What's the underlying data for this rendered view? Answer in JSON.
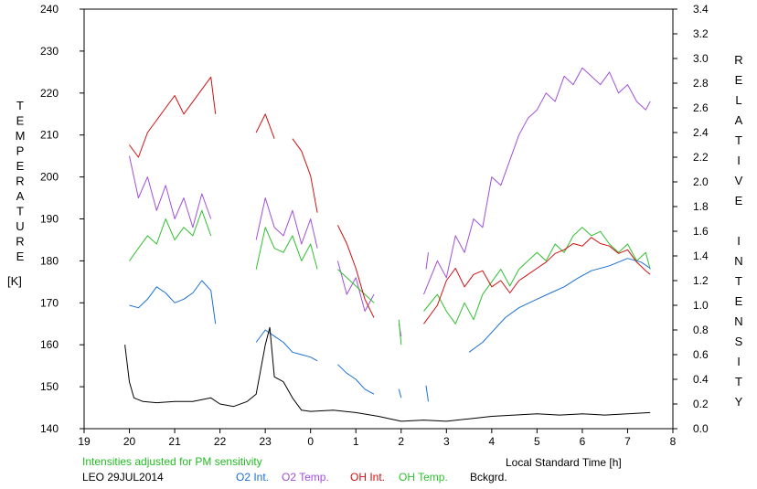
{
  "chart_data": {
    "type": "line",
    "left_axis_label": "TEMPERATURE",
    "left_axis_unit": "[K]",
    "right_axis_label": "RELATIVE INTENSITY",
    "xlabel": "Local Standard Time [h]",
    "note": "Intensities adjusted for PM sensitivity",
    "footer_id": "LEO 29JUL2014",
    "x_ticks": [
      "19",
      "20",
      "21",
      "22",
      "23",
      "0",
      "1",
      "2",
      "3",
      "4",
      "5",
      "6",
      "7",
      "8"
    ],
    "x_range": [
      19,
      32
    ],
    "y_left_ticks": [
      140,
      150,
      160,
      170,
      180,
      190,
      200,
      210,
      220,
      230,
      240
    ],
    "y_left_range": [
      140,
      240
    ],
    "y_right_ticks": [
      "0.0",
      "0.2",
      "0.4",
      "0.6",
      "0.8",
      "1.0",
      "1.2",
      "1.4",
      "1.6",
      "1.8",
      "2.0",
      "2.2",
      "2.4",
      "2.6",
      "2.8",
      "3.0",
      "3.2",
      "3.4"
    ],
    "y_right_range": [
      0,
      3.4
    ],
    "colors": {
      "o2_int": "#1a6fd6",
      "o2_temp": "#a050d8",
      "oh_int": "#d01010",
      "oh_temp": "#30c030",
      "bckgrd": "#000000",
      "note": "#22bb22"
    },
    "series": [
      {
        "name": "O2 Int.",
        "axis": "right",
        "color": "#1a6fd6",
        "segments": [
          [
            [
              20.0,
              1.0
            ],
            [
              20.2,
              0.98
            ],
            [
              20.4,
              1.05
            ],
            [
              20.6,
              1.15
            ],
            [
              20.8,
              1.1
            ],
            [
              21.0,
              1.02
            ],
            [
              21.2,
              1.05
            ],
            [
              21.4,
              1.1
            ],
            [
              21.6,
              1.2
            ],
            [
              21.8,
              1.12
            ],
            [
              21.9,
              0.85
            ]
          ],
          [
            [
              22.8,
              0.7
            ],
            [
              23.0,
              0.8
            ],
            [
              23.2,
              0.75
            ],
            [
              23.4,
              0.7
            ],
            [
              23.6,
              0.62
            ],
            [
              23.8,
              0.6
            ],
            [
              24.0,
              0.58
            ],
            [
              24.15,
              0.55
            ]
          ],
          [
            [
              24.6,
              0.52
            ],
            [
              24.8,
              0.45
            ],
            [
              25.0,
              0.4
            ],
            [
              25.2,
              0.32
            ],
            [
              25.4,
              0.28
            ]
          ],
          [
            [
              25.95,
              0.32
            ],
            [
              26.0,
              0.25
            ]
          ],
          [
            [
              26.55,
              0.35
            ],
            [
              26.6,
              0.22
            ]
          ],
          [
            [
              27.5,
              0.62
            ],
            [
              27.8,
              0.7
            ],
            [
              28.0,
              0.78
            ],
            [
              28.3,
              0.9
            ],
            [
              28.6,
              0.98
            ],
            [
              29.0,
              1.05
            ],
            [
              29.3,
              1.1
            ],
            [
              29.6,
              1.15
            ],
            [
              29.9,
              1.22
            ],
            [
              30.2,
              1.28
            ],
            [
              30.6,
              1.32
            ],
            [
              31.0,
              1.38
            ],
            [
              31.3,
              1.35
            ],
            [
              31.5,
              1.3
            ]
          ]
        ]
      },
      {
        "name": "O2 Temp.",
        "axis": "left",
        "color": "#a050d8",
        "segments": [
          [
            [
              20.0,
              205
            ],
            [
              20.2,
              195
            ],
            [
              20.4,
              200
            ],
            [
              20.6,
              192
            ],
            [
              20.8,
              198
            ],
            [
              21.0,
              190
            ],
            [
              21.2,
              195
            ],
            [
              21.4,
              188
            ],
            [
              21.6,
              196
            ],
            [
              21.8,
              190
            ]
          ],
          [
            [
              22.8,
              185
            ],
            [
              23.0,
              195
            ],
            [
              23.2,
              188
            ],
            [
              23.4,
              186
            ],
            [
              23.6,
              192
            ],
            [
              23.8,
              184
            ],
            [
              24.0,
              190
            ],
            [
              24.15,
              183
            ]
          ],
          [
            [
              24.6,
              180
            ],
            [
              24.8,
              172
            ],
            [
              25.0,
              176
            ],
            [
              25.2,
              168
            ],
            [
              25.4,
              172
            ]
          ],
          [
            [
              25.95,
              165
            ],
            [
              26.0,
              162
            ]
          ],
          [
            [
              26.55,
              178
            ],
            [
              26.6,
              182
            ]
          ],
          [
            [
              26.5,
              172
            ],
            [
              26.8,
              180
            ],
            [
              27.0,
              176
            ],
            [
              27.2,
              186
            ],
            [
              27.4,
              182
            ],
            [
              27.6,
              190
            ],
            [
              27.8,
              188
            ],
            [
              28.0,
              200
            ],
            [
              28.2,
              198
            ],
            [
              28.4,
              204
            ],
            [
              28.6,
              210
            ],
            [
              28.8,
              214
            ],
            [
              29.0,
              216
            ],
            [
              29.2,
              220
            ],
            [
              29.4,
              218
            ],
            [
              29.6,
              224
            ],
            [
              29.8,
              222
            ],
            [
              30.0,
              226
            ],
            [
              30.2,
              224
            ],
            [
              30.4,
              222
            ],
            [
              30.6,
              225
            ],
            [
              30.8,
              220
            ],
            [
              31.0,
              222
            ],
            [
              31.2,
              218
            ],
            [
              31.4,
              216
            ],
            [
              31.5,
              218
            ]
          ]
        ]
      },
      {
        "name": "OH Int.",
        "axis": "right",
        "color": "#d01010",
        "segments": [
          [
            [
              20.0,
              2.3
            ],
            [
              20.2,
              2.2
            ],
            [
              20.4,
              2.4
            ],
            [
              20.6,
              2.5
            ],
            [
              20.8,
              2.6
            ],
            [
              21.0,
              2.7
            ],
            [
              21.2,
              2.55
            ],
            [
              21.4,
              2.65
            ],
            [
              21.6,
              2.75
            ],
            [
              21.8,
              2.85
            ],
            [
              21.9,
              2.55
            ]
          ],
          [
            [
              22.8,
              2.4
            ],
            [
              23.0,
              2.55
            ],
            [
              23.2,
              2.35
            ]
          ],
          [
            [
              23.6,
              2.35
            ],
            [
              23.8,
              2.25
            ],
            [
              24.0,
              2.05
            ],
            [
              24.15,
              1.75
            ]
          ],
          [
            [
              24.6,
              1.65
            ],
            [
              24.8,
              1.5
            ],
            [
              25.0,
              1.3
            ],
            [
              25.2,
              1.05
            ],
            [
              25.4,
              0.9
            ]
          ],
          [
            [
              26.5,
              0.85
            ],
            [
              26.8,
              1.0
            ],
            [
              27.0,
              1.2
            ],
            [
              27.2,
              1.3
            ],
            [
              27.4,
              1.15
            ],
            [
              27.6,
              1.25
            ],
            [
              27.8,
              1.28
            ],
            [
              28.0,
              1.15
            ],
            [
              28.2,
              1.2
            ],
            [
              28.4,
              1.1
            ],
            [
              28.6,
              1.2
            ],
            [
              28.8,
              1.25
            ],
            [
              29.0,
              1.3
            ],
            [
              29.2,
              1.35
            ],
            [
              29.4,
              1.42
            ],
            [
              29.6,
              1.45
            ],
            [
              29.8,
              1.5
            ],
            [
              30.0,
              1.48
            ],
            [
              30.2,
              1.55
            ],
            [
              30.4,
              1.5
            ],
            [
              30.6,
              1.48
            ],
            [
              30.8,
              1.42
            ],
            [
              31.0,
              1.45
            ],
            [
              31.2,
              1.35
            ],
            [
              31.4,
              1.28
            ],
            [
              31.5,
              1.25
            ]
          ]
        ]
      },
      {
        "name": "OH Temp.",
        "axis": "left",
        "color": "#30c030",
        "segments": [
          [
            [
              20.0,
              180
            ],
            [
              20.2,
              183
            ],
            [
              20.4,
              186
            ],
            [
              20.6,
              184
            ],
            [
              20.8,
              190
            ],
            [
              21.0,
              185
            ],
            [
              21.2,
              188
            ],
            [
              21.4,
              186
            ],
            [
              21.6,
              192
            ],
            [
              21.8,
              186
            ]
          ],
          [
            [
              22.8,
              178
            ],
            [
              23.0,
              188
            ],
            [
              23.2,
              183
            ],
            [
              23.4,
              182
            ],
            [
              23.6,
              186
            ],
            [
              23.8,
              180
            ],
            [
              24.0,
              184
            ],
            [
              24.15,
              178
            ]
          ],
          [
            [
              24.6,
              178
            ],
            [
              24.8,
              176
            ],
            [
              25.0,
              174
            ],
            [
              25.2,
              172
            ],
            [
              25.4,
              170
            ]
          ],
          [
            [
              25.95,
              166
            ],
            [
              26.0,
              160
            ]
          ],
          [
            [
              26.5,
              168
            ],
            [
              26.8,
              172
            ],
            [
              27.0,
              168
            ],
            [
              27.2,
              165
            ],
            [
              27.4,
              170
            ],
            [
              27.6,
              166
            ],
            [
              27.8,
              172
            ],
            [
              28.0,
              175
            ],
            [
              28.2,
              178
            ],
            [
              28.4,
              174
            ],
            [
              28.6,
              178
            ],
            [
              28.8,
              180
            ],
            [
              29.0,
              182
            ],
            [
              29.2,
              180
            ],
            [
              29.4,
              184
            ],
            [
              29.6,
              182
            ],
            [
              29.8,
              186
            ],
            [
              30.0,
              188
            ],
            [
              30.2,
              186
            ],
            [
              30.4,
              187
            ],
            [
              30.6,
              184
            ],
            [
              30.8,
              182
            ],
            [
              31.0,
              184
            ],
            [
              31.2,
              180
            ],
            [
              31.4,
              182
            ],
            [
              31.5,
              178
            ]
          ]
        ]
      },
      {
        "name": "Bckgrd.",
        "axis": "right",
        "color": "#000000",
        "segments": [
          [
            [
              19.9,
              0.68
            ],
            [
              20.0,
              0.38
            ],
            [
              20.1,
              0.25
            ],
            [
              20.3,
              0.22
            ],
            [
              20.6,
              0.21
            ],
            [
              21.0,
              0.22
            ],
            [
              21.4,
              0.22
            ],
            [
              21.8,
              0.25
            ],
            [
              22.0,
              0.2
            ],
            [
              22.3,
              0.18
            ],
            [
              22.6,
              0.22
            ],
            [
              22.8,
              0.28
            ],
            [
              23.0,
              0.68
            ],
            [
              23.1,
              0.82
            ],
            [
              23.2,
              0.42
            ],
            [
              23.4,
              0.38
            ],
            [
              23.6,
              0.25
            ],
            [
              23.8,
              0.15
            ],
            [
              24.0,
              0.14
            ],
            [
              24.5,
              0.15
            ],
            [
              25.0,
              0.13
            ],
            [
              25.5,
              0.1
            ],
            [
              26.0,
              0.06
            ],
            [
              26.5,
              0.07
            ],
            [
              27.0,
              0.06
            ],
            [
              27.5,
              0.08
            ],
            [
              28.0,
              0.1
            ],
            [
              28.5,
              0.11
            ],
            [
              29.0,
              0.12
            ],
            [
              29.5,
              0.11
            ],
            [
              30.0,
              0.12
            ],
            [
              30.5,
              0.11
            ],
            [
              31.0,
              0.12
            ],
            [
              31.5,
              0.13
            ]
          ]
        ]
      }
    ]
  }
}
